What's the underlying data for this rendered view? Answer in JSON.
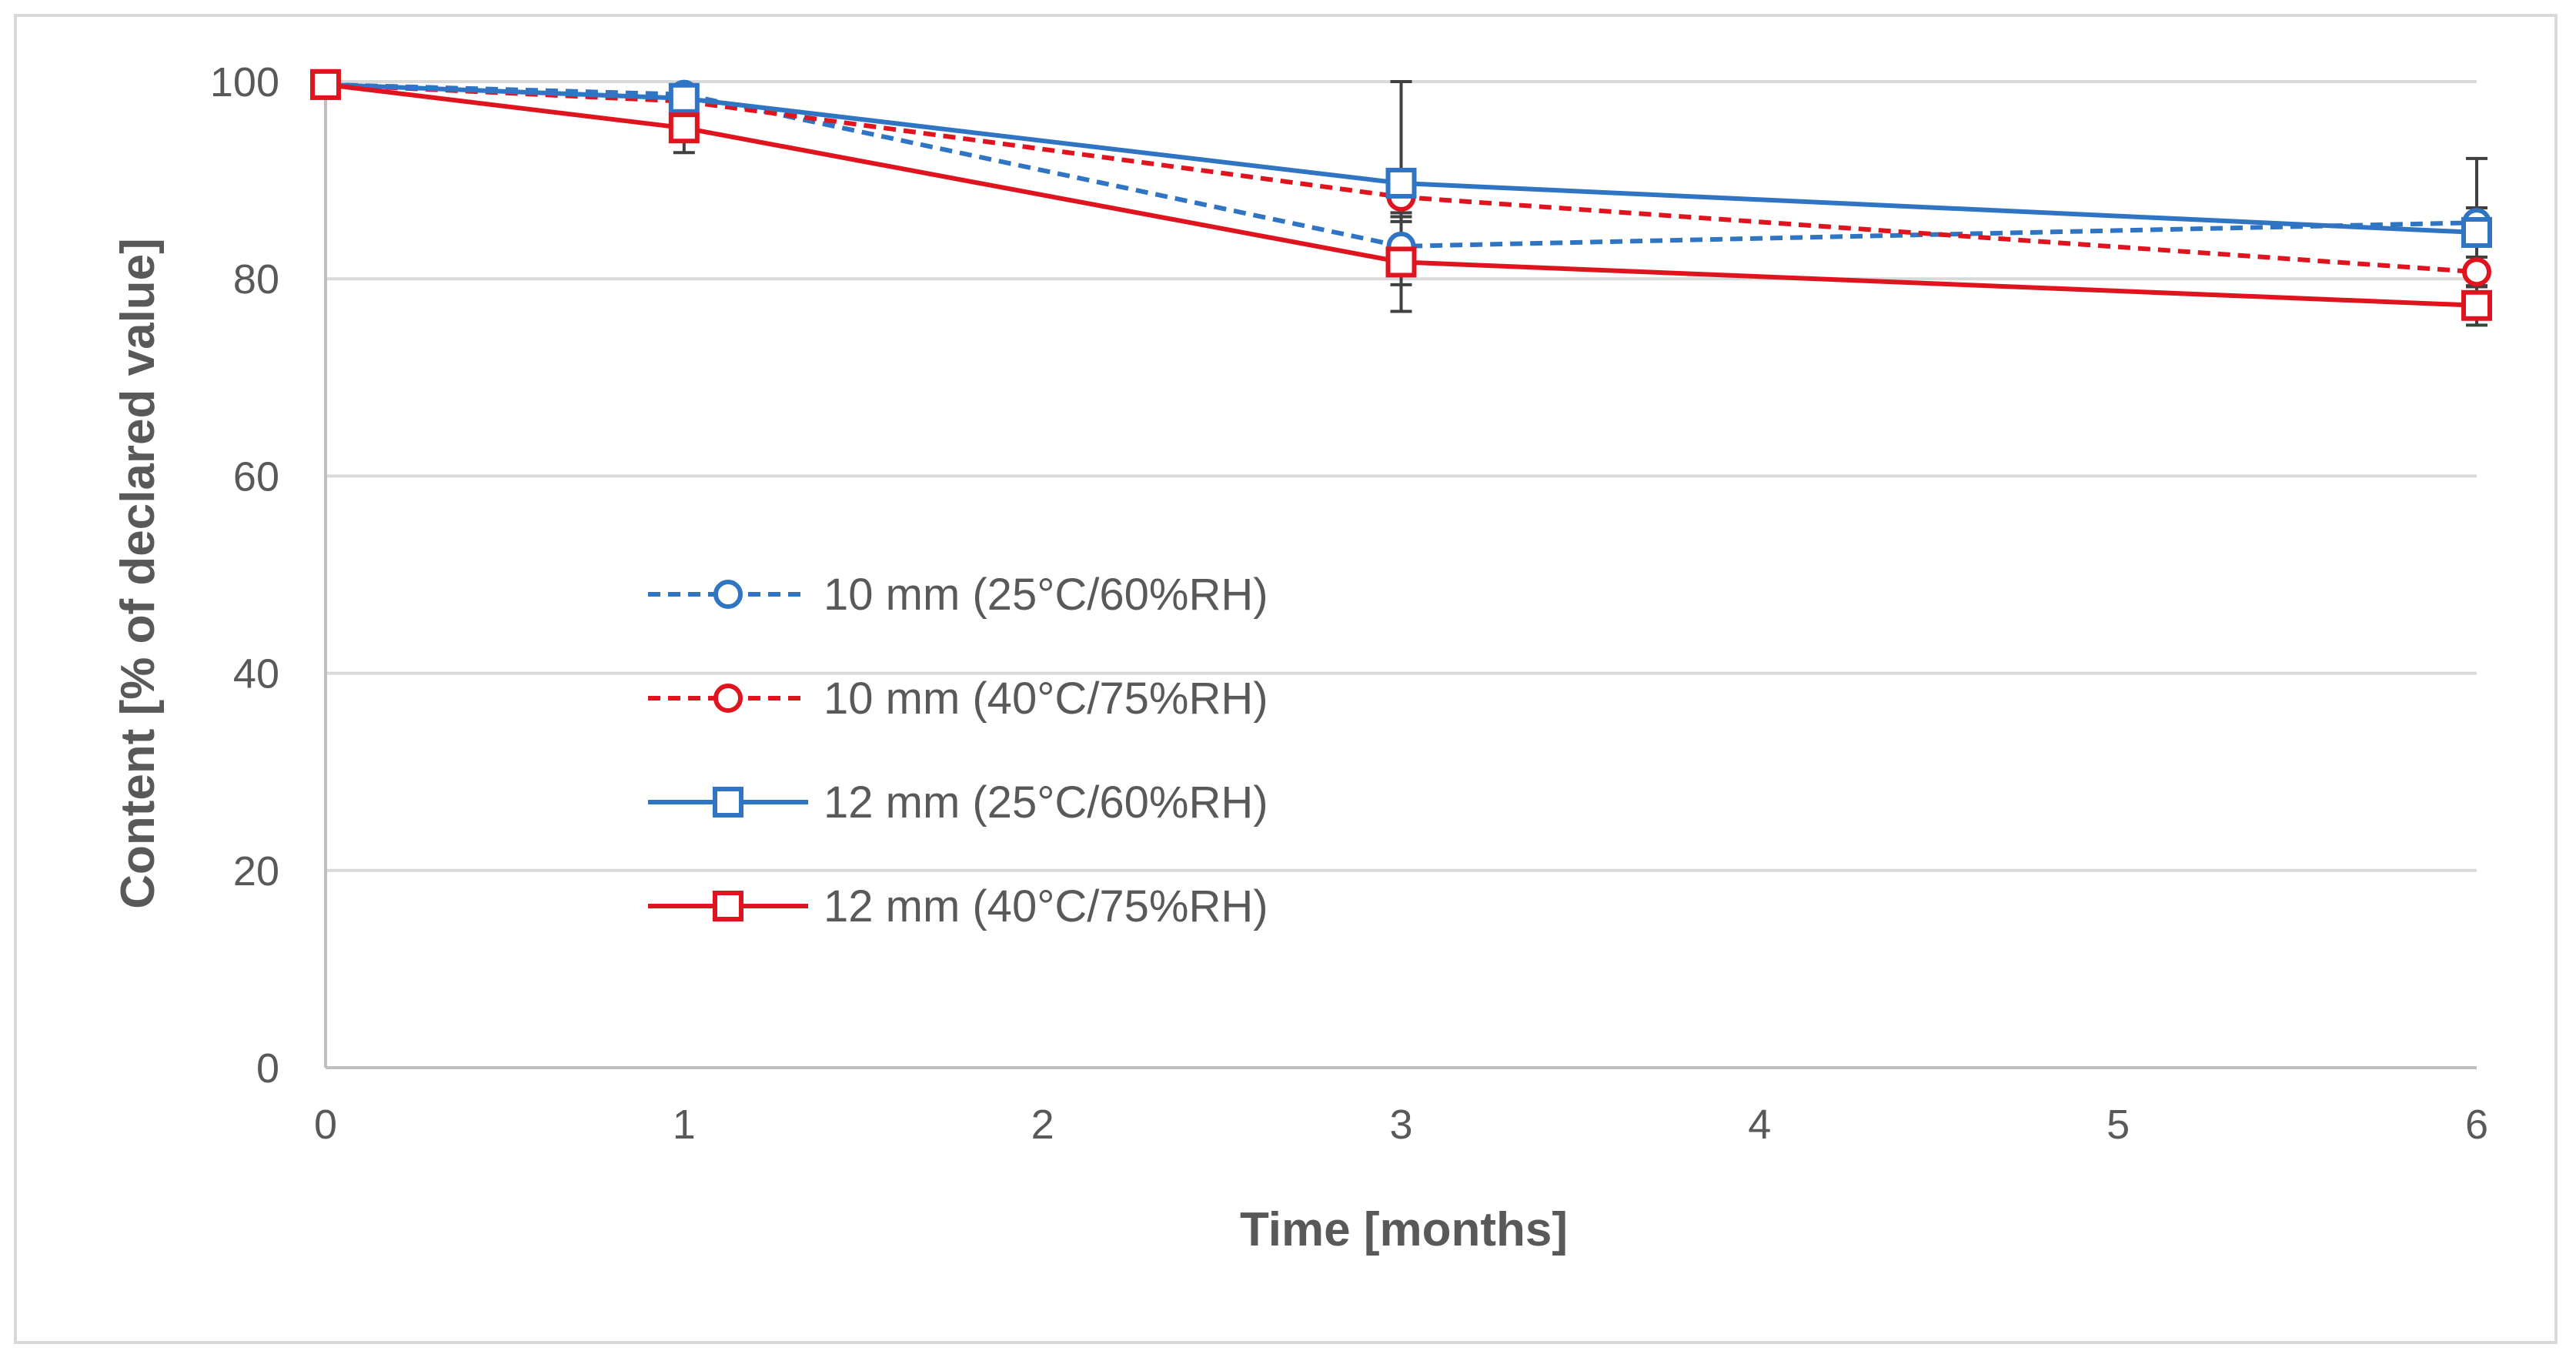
{
  "chart_data": {
    "type": "line",
    "title": "",
    "xlabel": "Time [months]",
    "ylabel": "Content [% of declared value]",
    "xlim": [
      0,
      6
    ],
    "ylim": [
      0,
      100
    ],
    "x_ticks": [
      "0",
      "1",
      "2",
      "3",
      "4",
      "5",
      "6"
    ],
    "y_ticks": [
      "0",
      "20",
      "40",
      "60",
      "80",
      "100"
    ],
    "grid": "horizontal",
    "legend_position": "center-left",
    "x": [
      0,
      1,
      3,
      6
    ],
    "series": [
      {
        "name": "10 mm (25°C/60%RH)",
        "color": "#2f75c3",
        "dash": "dashed",
        "marker": "circle",
        "values": [
          99.7,
          98.7,
          83.3,
          85.7
        ],
        "error": [
          0,
          0.8,
          2.5,
          1.5
        ]
      },
      {
        "name": "10 mm (40°C/75%RH)",
        "color": "#e0141e",
        "dash": "dashed",
        "marker": "circle",
        "values": [
          99.7,
          98.0,
          88.3,
          80.7
        ],
        "error": [
          0,
          1.0,
          2.0,
          1.5
        ]
      },
      {
        "name": "12 mm (25°C/60%RH)",
        "color": "#2f75c3",
        "dash": "solid",
        "marker": "square",
        "values": [
          99.7,
          98.3,
          89.7,
          84.7
        ],
        "error": [
          0,
          0.8,
          10.3,
          7.5
        ]
      },
      {
        "name": "12 mm (40°C/75%RH)",
        "color": "#e0141e",
        "dash": "solid",
        "marker": "square",
        "values": [
          99.7,
          95.3,
          81.7,
          77.3
        ],
        "error": [
          0,
          2.5,
          5.0,
          2.0
        ]
      }
    ]
  },
  "colors": {
    "grid": "#d9d9d9",
    "axis": "#bfbfbf",
    "error_bar": "#404040",
    "text": "#595959"
  }
}
